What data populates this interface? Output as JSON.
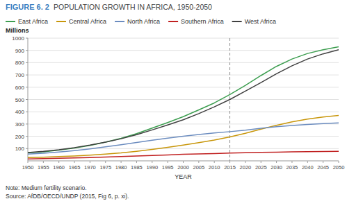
{
  "chart_data": {
    "type": "line",
    "title": "FIGURE 6. 2",
    "subtitle": "POPULATION GROWTH IN AFRICA, 1950-2050",
    "y_label": "Millions",
    "x_label": "YEAR",
    "notes": [
      "Note: Medium fertility scenario.",
      "Source: AfDB/OECD/UNDP (2015, Fig 6, p. xi)."
    ],
    "vline": 2015,
    "x": [
      1950,
      1955,
      1960,
      1965,
      1970,
      1975,
      1980,
      1985,
      1990,
      1995,
      2000,
      2005,
      2010,
      2015,
      2020,
      2025,
      2030,
      2035,
      2040,
      2045,
      2050
    ],
    "series": [
      {
        "name": "East Africa",
        "color": "#3d9e50",
        "values": [
          65,
          74,
          87,
          104,
          126,
          152,
          184,
          222,
          267,
          312,
          360,
          415,
          472,
          540,
          615,
          695,
          770,
          830,
          875,
          905,
          930
        ]
      },
      {
        "name": "Central Africa",
        "color": "#c8960a",
        "values": [
          27,
          30,
          35,
          40,
          47,
          55,
          65,
          78,
          93,
          110,
          128,
          148,
          170,
          195,
          225,
          258,
          290,
          318,
          340,
          358,
          370
        ]
      },
      {
        "name": "North Africa",
        "color": "#6b8cbf",
        "values": [
          55,
          62,
          72,
          84,
          98,
          114,
          131,
          150,
          168,
          185,
          200,
          215,
          228,
          238,
          250,
          265,
          278,
          288,
          296,
          303,
          310
        ]
      },
      {
        "name": "Southern Africa",
        "color": "#c02020",
        "values": [
          16,
          18,
          21,
          24,
          27,
          31,
          35,
          39,
          44,
          48,
          53,
          57,
          60,
          63,
          66,
          69,
          71,
          73,
          75,
          76,
          77
        ]
      },
      {
        "name": "West Africa",
        "color": "#404040",
        "values": [
          68,
          78,
          91,
          108,
          128,
          152,
          180,
          213,
          252,
          292,
          335,
          385,
          440,
          500,
          568,
          638,
          710,
          775,
          830,
          872,
          905
        ]
      }
    ],
    "xlim": [
      1950,
      2050
    ],
    "ylim": [
      0,
      1000
    ],
    "xticks": [
      1950,
      1955,
      1960,
      1965,
      1970,
      1975,
      1980,
      1985,
      1990,
      1995,
      2000,
      2005,
      2010,
      2015,
      2020,
      2025,
      2030,
      2035,
      2040,
      2045,
      2050
    ],
    "yticks": [
      100,
      200,
      300,
      400,
      500,
      600,
      700,
      800,
      900,
      1000
    ],
    "grid": true,
    "legend": "top"
  }
}
